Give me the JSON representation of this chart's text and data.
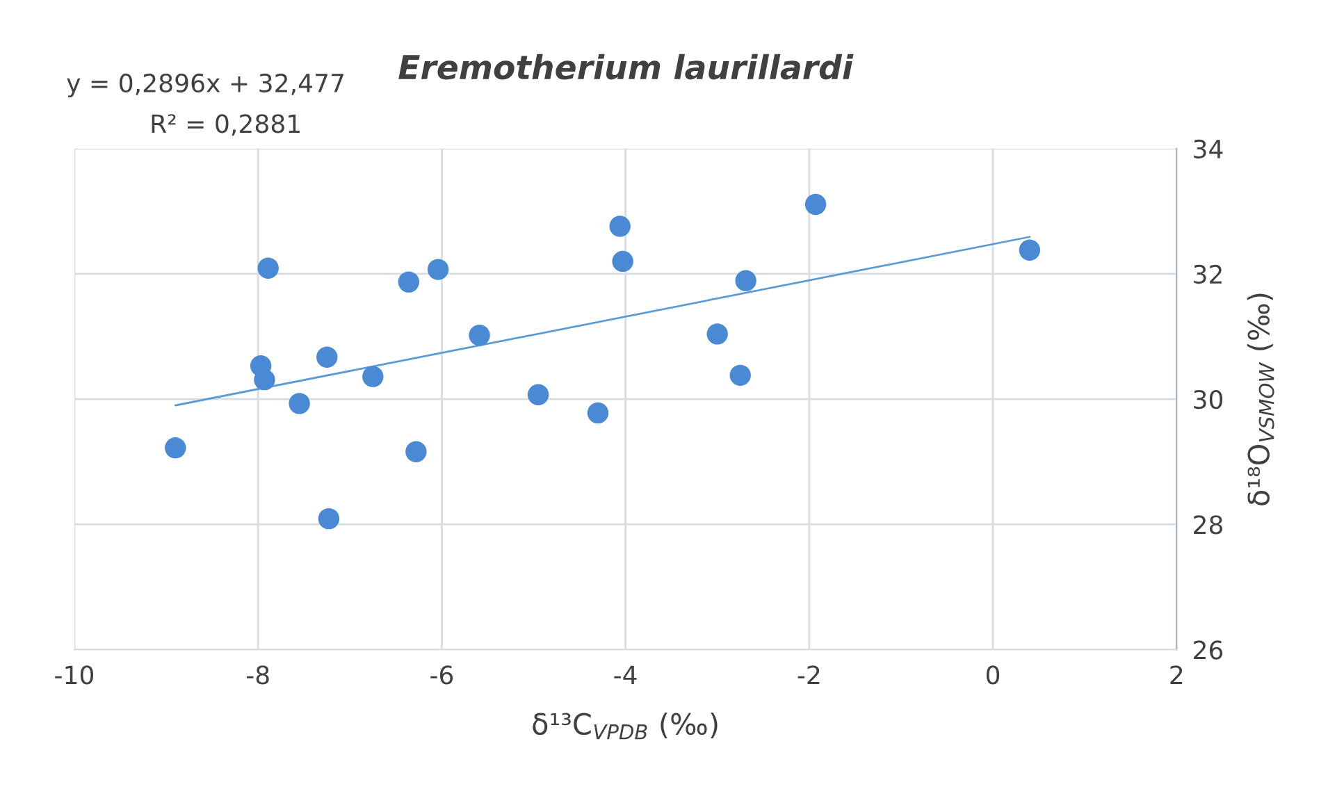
{
  "chart_data": {
    "type": "scatter",
    "title": "Eremotherium laurillardi",
    "xlabel": "δ¹³C$_{VPDB}$ (‰)",
    "ylabel": "δ¹⁸O$_{VSMOW}$ (‰)",
    "annotations": [
      "y = 0,2896x + 32,477",
      "R² = 0,2881"
    ],
    "xlim": [
      -10,
      2
    ],
    "xticks": [
      -10,
      -8,
      -6,
      -4,
      -2,
      0,
      2
    ],
    "ylim": [
      26,
      34
    ],
    "yticks": [
      26,
      28,
      30,
      32,
      34
    ],
    "grid": true,
    "series": [
      {
        "marker": "circle",
        "color": "#4a8ad4",
        "x": [
          -8.9,
          -7.97,
          -7.93,
          -7.89,
          -7.55,
          -7.23,
          -7.25,
          -6.75,
          -6.36,
          -6.28,
          -6.04,
          -5.59,
          -4.95,
          -4.3,
          -4.06,
          -4.03,
          -3.0,
          -2.75,
          -2.69,
          -1.93,
          0.4
        ],
        "values": [
          29.22,
          30.53,
          30.31,
          32.09,
          29.93,
          28.09,
          30.67,
          30.36,
          31.87,
          29.16,
          32.07,
          31.02,
          30.07,
          29.78,
          32.76,
          32.2,
          31.04,
          30.38,
          31.89,
          33.11,
          32.38
        ]
      },
      {
        "type": "line",
        "color": "#5b9bd5",
        "x": [
          -8.9,
          0.4
        ],
        "values": [
          29.9,
          32.59
        ]
      }
    ]
  }
}
